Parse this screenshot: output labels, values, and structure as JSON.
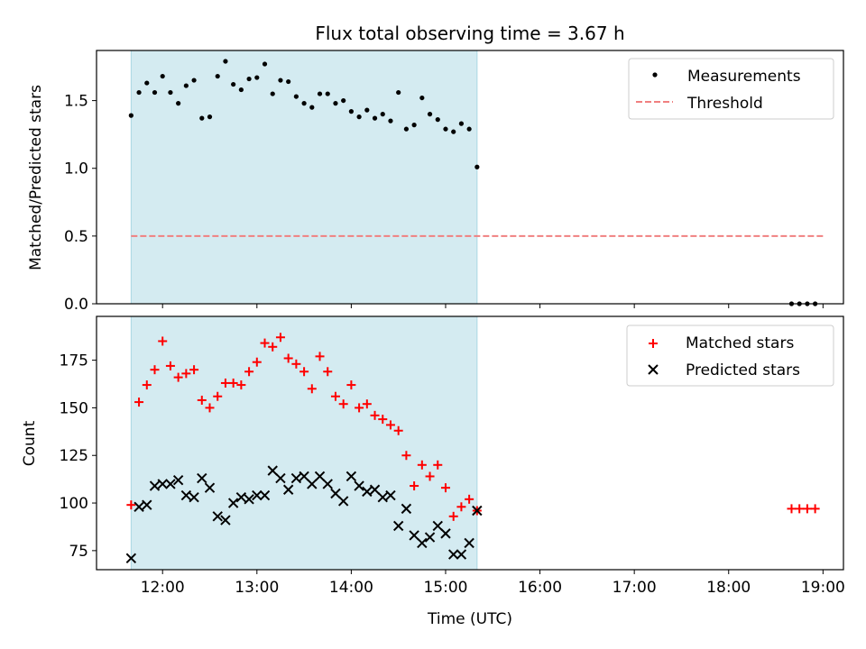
{
  "figure": {
    "title": "Flux total observing time = 3.67 h",
    "xlabel": "Time (UTC)"
  },
  "colors": {
    "span_fill": "#d4ebf1",
    "span_edge": "#a9d7e3",
    "measurement": "#000000",
    "threshold": "#f08080",
    "matched": "#ff0000",
    "predicted": "#000000"
  },
  "chart_data": [
    {
      "type": "scatter",
      "title": "Flux total observing time = 3.67 h",
      "xlabel": "",
      "ylabel": "Matched/Predicted stars",
      "x_is_time": true,
      "xlim": [
        "11:18",
        "19:13"
      ],
      "ylim": [
        0,
        1.87
      ],
      "yticks": [
        0.0,
        0.5,
        1.0,
        1.5
      ],
      "ytick_labels": [
        "0.0",
        "0.5",
        "1.0",
        "1.5"
      ],
      "xticks": [
        "12:00",
        "13:00",
        "14:00",
        "15:00",
        "16:00",
        "17:00",
        "18:00",
        "19:00"
      ],
      "shaded_span": [
        "11:40",
        "15:20"
      ],
      "grid": false,
      "legend_position": "top-right",
      "legend": [
        "Measurements",
        "Threshold"
      ],
      "series": [
        {
          "name": "Measurements",
          "kind": "points",
          "x": [
            "11:40",
            "11:45",
            "11:50",
            "11:55",
            "12:00",
            "12:05",
            "12:10",
            "12:15",
            "12:20",
            "12:25",
            "12:30",
            "12:35",
            "12:40",
            "12:45",
            "12:50",
            "12:55",
            "13:00",
            "13:05",
            "13:10",
            "13:15",
            "13:20",
            "13:25",
            "13:30",
            "13:35",
            "13:40",
            "13:45",
            "13:50",
            "13:55",
            "14:00",
            "14:05",
            "14:10",
            "14:15",
            "14:20",
            "14:25",
            "14:30",
            "14:35",
            "14:40",
            "14:45",
            "14:50",
            "14:55",
            "15:00",
            "15:05",
            "15:10",
            "15:15",
            "15:20",
            "18:40",
            "18:45",
            "18:50",
            "18:55"
          ],
          "y": [
            1.39,
            1.56,
            1.63,
            1.56,
            1.68,
            1.56,
            1.48,
            1.61,
            1.65,
            1.37,
            1.38,
            1.68,
            1.79,
            1.62,
            1.58,
            1.66,
            1.67,
            1.77,
            1.55,
            1.65,
            1.64,
            1.53,
            1.48,
            1.45,
            1.55,
            1.55,
            1.48,
            1.5,
            1.42,
            1.38,
            1.43,
            1.37,
            1.4,
            1.35,
            1.56,
            1.29,
            1.32,
            1.52,
            1.4,
            1.36,
            1.29,
            1.27,
            1.33,
            1.29,
            1.01,
            0.0,
            0.0,
            0.0,
            0.0
          ]
        },
        {
          "name": "Threshold",
          "kind": "dashed-line",
          "x": [
            "11:40",
            "19:00"
          ],
          "y": [
            0.5,
            0.5
          ]
        }
      ]
    },
    {
      "type": "scatter",
      "xlabel": "Time (UTC)",
      "ylabel": "Count",
      "x_is_time": true,
      "xlim": [
        "11:18",
        "19:13"
      ],
      "ylim": [
        65,
        198
      ],
      "yticks": [
        75,
        100,
        125,
        150,
        175
      ],
      "ytick_labels": [
        "75",
        "100",
        "125",
        "150",
        "175"
      ],
      "xticks": [
        "12:00",
        "13:00",
        "14:00",
        "15:00",
        "16:00",
        "17:00",
        "18:00",
        "19:00"
      ],
      "xtick_labels": [
        "12:00",
        "13:00",
        "14:00",
        "15:00",
        "16:00",
        "17:00",
        "18:00",
        "19:00"
      ],
      "shaded_span": [
        "11:40",
        "15:20"
      ],
      "grid": false,
      "legend_position": "top-right",
      "legend": [
        "Matched stars",
        "Predicted stars"
      ],
      "series": [
        {
          "name": "Matched stars",
          "marker": "plus",
          "x": [
            "11:40",
            "11:45",
            "11:50",
            "11:55",
            "12:00",
            "12:05",
            "12:10",
            "12:15",
            "12:20",
            "12:25",
            "12:30",
            "12:35",
            "12:40",
            "12:45",
            "12:50",
            "12:55",
            "13:00",
            "13:05",
            "13:10",
            "13:15",
            "13:20",
            "13:25",
            "13:30",
            "13:35",
            "13:40",
            "13:45",
            "13:50",
            "13:55",
            "14:00",
            "14:05",
            "14:10",
            "14:15",
            "14:20",
            "14:25",
            "14:30",
            "14:35",
            "14:40",
            "14:45",
            "14:50",
            "14:55",
            "15:00",
            "15:05",
            "15:10",
            "15:15",
            "15:20",
            "18:40",
            "18:45",
            "18:50",
            "18:55"
          ],
          "y": [
            99,
            153,
            162,
            170,
            185,
            172,
            166,
            168,
            170,
            154,
            150,
            156,
            163,
            163,
            162,
            169,
            174,
            184,
            182,
            187,
            176,
            173,
            169,
            160,
            177,
            169,
            156,
            152,
            162,
            150,
            152,
            146,
            144,
            141,
            138,
            125,
            109,
            120,
            114,
            120,
            108,
            93,
            98,
            102,
            96,
            97,
            97,
            97,
            97
          ]
        },
        {
          "name": "Predicted stars",
          "marker": "x",
          "x": [
            "11:40",
            "11:45",
            "11:50",
            "11:55",
            "12:00",
            "12:05",
            "12:10",
            "12:15",
            "12:20",
            "12:25",
            "12:30",
            "12:35",
            "12:40",
            "12:45",
            "12:50",
            "12:55",
            "13:00",
            "13:05",
            "13:10",
            "13:15",
            "13:20",
            "13:25",
            "13:30",
            "13:35",
            "13:40",
            "13:45",
            "13:50",
            "13:55",
            "14:00",
            "14:05",
            "14:10",
            "14:15",
            "14:20",
            "14:25",
            "14:30",
            "14:35",
            "14:40",
            "14:45",
            "14:50",
            "14:55",
            "15:00",
            "15:05",
            "15:10",
            "15:15",
            "15:20"
          ],
          "y": [
            71,
            98,
            99,
            109,
            110,
            110,
            112,
            104,
            103,
            113,
            108,
            93,
            91,
            100,
            103,
            102,
            104,
            104,
            117,
            113,
            107,
            113,
            114,
            110,
            114,
            110,
            105,
            101,
            114,
            109,
            106,
            107,
            103,
            104,
            88,
            97,
            83,
            79,
            82,
            88,
            84,
            73,
            73,
            79,
            96
          ]
        }
      ]
    }
  ]
}
